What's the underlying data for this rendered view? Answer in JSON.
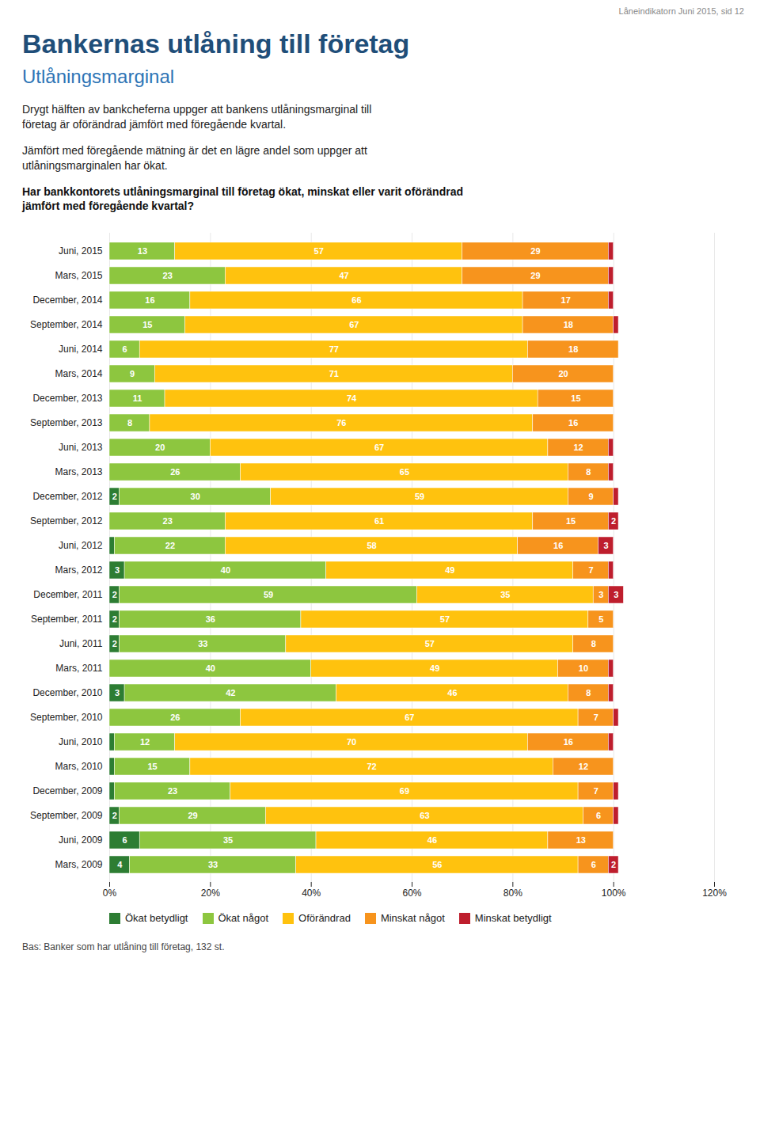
{
  "chart_data": {
    "type": "bar",
    "orientation": "horizontal",
    "stacked": true,
    "title": "Bankernas utlåning till företag",
    "subtitle": "Utlåningsmarginal",
    "annotations": [
      "Drygt hälften av bankcheferna uppger att bankens utlåningsmarginal till\nföretag är oförändrad jämfört med föregående kvartal.",
      "Jämfört med föregående mätning är det en lägre andel som uppger att\nutlåningsmarginalen har ökat.",
      "Har bankkontorets utlåningsmarginal till företag ökat, minskat eller varit oförändrad\njämfört med föregående kvartal?",
      "Låneindikatorn Juni 2015, sid 12",
      "Bas: Banker som har utlåning till företag, 132 st."
    ],
    "categories": [
      "Juni, 2015",
      "Mars, 2015",
      "December, 2014",
      "September, 2014",
      "Juni, 2014",
      "Mars, 2014",
      "December, 2013",
      "September, 2013",
      "Juni, 2013",
      "Mars, 2013",
      "December, 2012",
      "September, 2012",
      "Juni, 2012",
      "Mars, 2012",
      "December, 2011",
      "September, 2011",
      "Juni, 2011",
      "Mars, 2011",
      "December, 2010",
      "September, 2010",
      "Juni, 2010",
      "Mars, 2010",
      "December, 2009",
      "September, 2009",
      "Juni, 2009",
      "Mars, 2009"
    ],
    "series": [
      {
        "name": "Ökat betydligt",
        "color": "#2d7d33",
        "values": [
          0,
          0,
          0,
          0,
          0,
          0,
          0,
          0,
          0,
          0,
          2,
          0,
          1,
          3,
          2,
          2,
          2,
          0,
          3,
          0,
          1,
          1,
          1,
          2,
          6,
          4
        ],
        "value_labels": [
          null,
          null,
          null,
          null,
          null,
          null,
          null,
          null,
          null,
          null,
          "2",
          null,
          null,
          "3",
          "2",
          "2",
          "2",
          null,
          "3",
          null,
          null,
          null,
          null,
          "2",
          "6",
          "4"
        ]
      },
      {
        "name": "Ökat något",
        "color": "#8dc63f",
        "values": [
          13,
          23,
          16,
          15,
          6,
          9,
          11,
          8,
          20,
          26,
          30,
          23,
          22,
          40,
          59,
          36,
          33,
          40,
          42,
          26,
          12,
          15,
          23,
          29,
          35,
          33
        ],
        "value_labels": [
          "13",
          "23",
          "16",
          "15",
          "6",
          "9",
          "11",
          "8",
          "20",
          "26",
          "30",
          "23",
          "22",
          "40",
          "59",
          "36",
          "33",
          "40",
          "42",
          "26",
          "12",
          "15",
          "23",
          "29",
          "35",
          "33"
        ]
      },
      {
        "name": "Oförändrad",
        "color": "#ffc20e",
        "values": [
          57,
          47,
          66,
          67,
          77,
          71,
          74,
          76,
          67,
          65,
          59,
          61,
          58,
          49,
          35,
          57,
          57,
          49,
          46,
          67,
          70,
          72,
          69,
          63,
          46,
          56
        ],
        "value_labels": [
          "57",
          "47",
          "66",
          "67",
          "77",
          "71",
          "74",
          "76",
          "67",
          "65",
          "59",
          "61",
          "58",
          "49",
          "35",
          "57",
          "57",
          "49",
          "46",
          "67",
          "70",
          "72",
          "69",
          "63",
          "46",
          "56"
        ]
      },
      {
        "name": "Minskat något",
        "color": "#f7941d",
        "values": [
          29,
          29,
          17,
          18,
          18,
          20,
          15,
          16,
          12,
          8,
          9,
          15,
          16,
          7,
          3,
          5,
          8,
          10,
          8,
          7,
          16,
          12,
          7,
          6,
          13,
          6
        ],
        "value_labels": [
          "29",
          "29",
          "17",
          "18",
          "18",
          "20",
          "15",
          "16",
          "12",
          "8",
          "9",
          "15",
          "16",
          "7",
          "3",
          "5",
          "8",
          "10",
          "8",
          "7",
          "16",
          "12",
          "7",
          "6",
          "13",
          "6"
        ]
      },
      {
        "name": "Minskat betydligt",
        "color": "#be1e2d",
        "values": [
          1,
          1,
          1,
          1,
          0,
          0,
          0,
          0,
          1,
          1,
          1,
          2,
          3,
          1,
          3,
          0,
          0,
          1,
          1,
          1,
          1,
          0,
          1,
          1,
          0,
          2
        ],
        "value_labels": [
          null,
          null,
          null,
          null,
          null,
          null,
          null,
          null,
          null,
          null,
          null,
          "2",
          "3",
          null,
          "3",
          null,
          null,
          null,
          null,
          null,
          null,
          null,
          null,
          null,
          null,
          "2"
        ]
      }
    ],
    "xlim": [
      0,
      120
    ],
    "xticks": [
      {
        "value": 0,
        "label": "0%"
      },
      {
        "value": 20,
        "label": "20%"
      },
      {
        "value": 40,
        "label": "40%"
      },
      {
        "value": 60,
        "label": "60%"
      },
      {
        "value": 80,
        "label": "80%"
      },
      {
        "value": 100,
        "label": "100%"
      },
      {
        "value": 120,
        "label": "120%"
      }
    ],
    "grid": true,
    "legend": "bottom",
    "data_labels": true
  }
}
